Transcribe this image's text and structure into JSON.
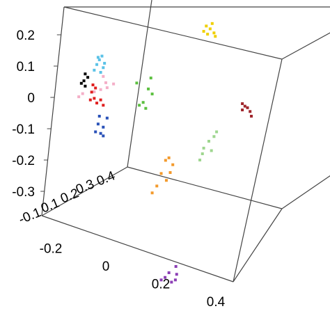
{
  "chart_data": {
    "type": "scatter",
    "projection": "3d",
    "title": "",
    "xlabel": "",
    "ylabel": "",
    "zlabel": "",
    "grid": false,
    "legend": "none",
    "vertical_axis": {
      "ticks": [
        0.2,
        0.1,
        0,
        -0.1,
        -0.2,
        -0.3
      ],
      "tick_labels": [
        "0.2",
        "0.1",
        "0",
        "-0.1",
        "-0.2",
        "-0.3"
      ]
    },
    "depth_axis": {
      "tick_labels": [
        "-0.1",
        "0.1",
        "0.2",
        "0.3",
        "0.4"
      ]
    },
    "horizontal_axis": {
      "ticks": [
        -0.2,
        0,
        0.2,
        0.4
      ],
      "tick_labels": [
        "-0.2",
        "0",
        "0.2",
        "0.4"
      ]
    },
    "series": [
      {
        "color": "#F0D000",
        "points": [
          [
            -0.01,
            0.228
          ],
          [
            0.005,
            0.219
          ],
          [
            0.013,
            0.236
          ],
          [
            -0.02,
            0.211
          ],
          [
            -0.005,
            0.202
          ],
          [
            0.02,
            0.206
          ],
          [
            0.025,
            0.195
          ]
        ]
      },
      {
        "color": "#5BC2E7",
        "points": [
          [
            -0.43,
            0.128
          ],
          [
            -0.425,
            0.12
          ],
          [
            -0.415,
            0.132
          ],
          [
            -0.405,
            0.109
          ],
          [
            -0.435,
            0.105
          ],
          [
            -0.445,
            0.087
          ],
          [
            -0.41,
            0.095
          ],
          [
            -0.42,
            0.08
          ]
        ]
      },
      {
        "color": "#000000",
        "points": [
          [
            -0.48,
            0.075
          ],
          [
            -0.47,
            0.064
          ],
          [
            -0.485,
            0.053
          ],
          [
            -0.495,
            0.045
          ],
          [
            -0.48,
            0.036
          ]
        ]
      },
      {
        "color": "#F4AFC8",
        "points": [
          [
            -0.41,
            0.067
          ],
          [
            -0.4,
            0.047
          ],
          [
            -0.395,
            0.031
          ],
          [
            -0.42,
            0.025
          ],
          [
            -0.445,
            0.018
          ],
          [
            -0.49,
            0.012
          ],
          [
            -0.505,
            0.002
          ],
          [
            -0.37,
            0.043
          ]
        ]
      },
      {
        "color": "#E02020",
        "points": [
          [
            -0.45,
            0.04
          ],
          [
            -0.44,
            0.03
          ],
          [
            -0.455,
            0.017
          ],
          [
            -0.445,
            -0.003
          ],
          [
            -0.435,
            -0.018
          ],
          [
            -0.46,
            -0.008
          ],
          [
            -0.42,
            -0.008
          ],
          [
            -0.41,
            -0.025
          ]
        ]
      },
      {
        "color": "#2A52B8",
        "points": [
          [
            -0.425,
            -0.06
          ],
          [
            -0.43,
            -0.085
          ],
          [
            -0.41,
            -0.095
          ],
          [
            -0.44,
            -0.11
          ],
          [
            -0.42,
            -0.115
          ],
          [
            -0.41,
            -0.123
          ],
          [
            -0.395,
            -0.066
          ]
        ]
      },
      {
        "color": "#5CC040",
        "points": [
          [
            -0.28,
            0.046
          ],
          [
            -0.225,
            0.062
          ],
          [
            -0.235,
            0.027
          ],
          [
            -0.22,
            0.011
          ],
          [
            -0.255,
            -0.016
          ],
          [
            -0.27,
            -0.025
          ],
          [
            -0.245,
            -0.035
          ]
        ]
      },
      {
        "color": "#F39A2C",
        "points": [
          [
            -0.155,
            -0.193
          ],
          [
            -0.168,
            -0.201
          ],
          [
            -0.14,
            -0.215
          ],
          [
            -0.15,
            -0.24
          ],
          [
            -0.185,
            -0.243
          ],
          [
            -0.165,
            -0.265
          ],
          [
            -0.202,
            -0.283
          ],
          [
            -0.22,
            -0.305
          ]
        ]
      },
      {
        "color": "#9ED68F",
        "points": [
          [
            0.03,
            -0.11
          ],
          [
            0.02,
            -0.125
          ],
          [
            0.0,
            -0.14
          ],
          [
            -0.02,
            -0.162
          ],
          [
            -0.035,
            -0.2
          ],
          [
            -0.025,
            -0.18
          ],
          [
            0.01,
            -0.17
          ]
        ]
      },
      {
        "color": "#A0262C",
        "points": [
          [
            0.13,
            -0.02
          ],
          [
            0.14,
            -0.028
          ],
          [
            0.15,
            -0.033
          ],
          [
            0.13,
            -0.04
          ],
          [
            0.16,
            -0.045
          ],
          [
            0.165,
            -0.06
          ]
        ]
      },
      {
        "color": "#8C3FB5",
        "points": [
          [
            -0.128,
            -0.54
          ],
          [
            -0.125,
            -0.565
          ],
          [
            -0.155,
            -0.56
          ],
          [
            -0.17,
            -0.575
          ],
          [
            -0.185,
            -0.583
          ],
          [
            -0.13,
            -0.583
          ],
          [
            -0.145,
            -0.59
          ]
        ]
      }
    ]
  }
}
